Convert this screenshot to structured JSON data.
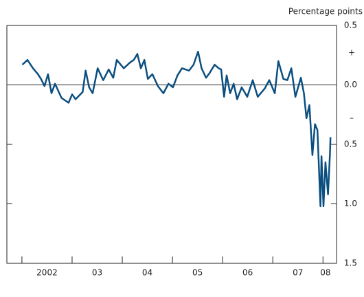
{
  "chart_data": {
    "type": "line",
    "unit_label": "Percentage points",
    "sign_labels": [
      "+",
      "–"
    ],
    "x": [
      2002.01,
      2002.11,
      2002.22,
      2002.32,
      2002.38,
      2002.45,
      2002.52,
      2002.59,
      2002.66,
      2002.79,
      2002.93,
      2003.0,
      2003.07,
      2003.21,
      2003.27,
      2003.34,
      2003.41,
      2003.51,
      2003.62,
      2003.73,
      2003.82,
      2003.89,
      2004.03,
      2004.16,
      2004.23,
      2004.3,
      2004.37,
      2004.44,
      2004.51,
      2004.6,
      2004.71,
      2004.82,
      2004.92,
      2005.01,
      2005.1,
      2005.19,
      2005.33,
      2005.42,
      2005.51,
      2005.58,
      2005.67,
      2005.74,
      2005.84,
      2005.92,
      2005.97,
      2006.03,
      2006.08,
      2006.15,
      2006.22,
      2006.29,
      2006.38,
      2006.49,
      2006.6,
      2006.7,
      2006.84,
      2006.93,
      2007.04,
      2007.11,
      2007.21,
      2007.29,
      2007.37,
      2007.45,
      2007.56,
      2007.62,
      2007.67,
      2007.73,
      2007.79,
      2007.84,
      2007.89,
      2007.95,
      2007.97,
      2008.01,
      2008.05,
      2008.1,
      2008.14,
      2008.15
    ],
    "series": [
      {
        "color": "#0b4f80",
        "values": [
          0.17,
          0.21,
          0.14,
          0.09,
          0.05,
          -0.01,
          0.09,
          -0.07,
          0.01,
          -0.11,
          -0.15,
          -0.08,
          -0.12,
          -0.06,
          0.12,
          -0.02,
          -0.07,
          0.14,
          0.04,
          0.13,
          0.06,
          0.21,
          0.14,
          0.19,
          0.21,
          0.26,
          0.14,
          0.21,
          0.05,
          0.09,
          -0.01,
          -0.07,
          0.01,
          -0.02,
          0.08,
          0.14,
          0.12,
          0.17,
          0.28,
          0.14,
          0.06,
          0.1,
          0.17,
          0.14,
          0.13,
          -0.1,
          0.08,
          -0.07,
          0.01,
          -0.12,
          -0.02,
          -0.1,
          0.04,
          -0.1,
          -0.03,
          0.04,
          -0.07,
          0.2,
          0.05,
          0.04,
          0.14,
          -0.1,
          0.06,
          -0.07,
          -0.28,
          -0.17,
          -0.59,
          -0.33,
          -0.38,
          -1.02,
          -0.6,
          -1.02,
          -0.65,
          -0.92,
          -0.57,
          -0.44
        ]
      }
    ],
    "xlim": [
      2001.7,
      2008.27
    ],
    "xticks": [
      {
        "value": 2002.5,
        "label": "2002"
      },
      {
        "value": 2003.5,
        "label": "03"
      },
      {
        "value": 2004.5,
        "label": "04"
      },
      {
        "value": 2005.5,
        "label": "05"
      },
      {
        "value": 2006.5,
        "label": "06"
      },
      {
        "value": 2007.5,
        "label": "07"
      },
      {
        "value": 2008.05,
        "label": "08"
      }
    ],
    "year_boundaries": [
      2002,
      2003,
      2004,
      2005,
      2006,
      2007,
      2008
    ],
    "ylim": [
      -1.5,
      0.5
    ],
    "yticks": [
      {
        "value": 0.5,
        "label": "0.5"
      },
      {
        "value": 0,
        "label": "0.0"
      },
      {
        "value": -0.5,
        "label": "0.5"
      },
      {
        "value": -1,
        "label": "1.0"
      },
      {
        "value": -1.5,
        "label": "1.5"
      }
    ],
    "zero_line": 0
  }
}
